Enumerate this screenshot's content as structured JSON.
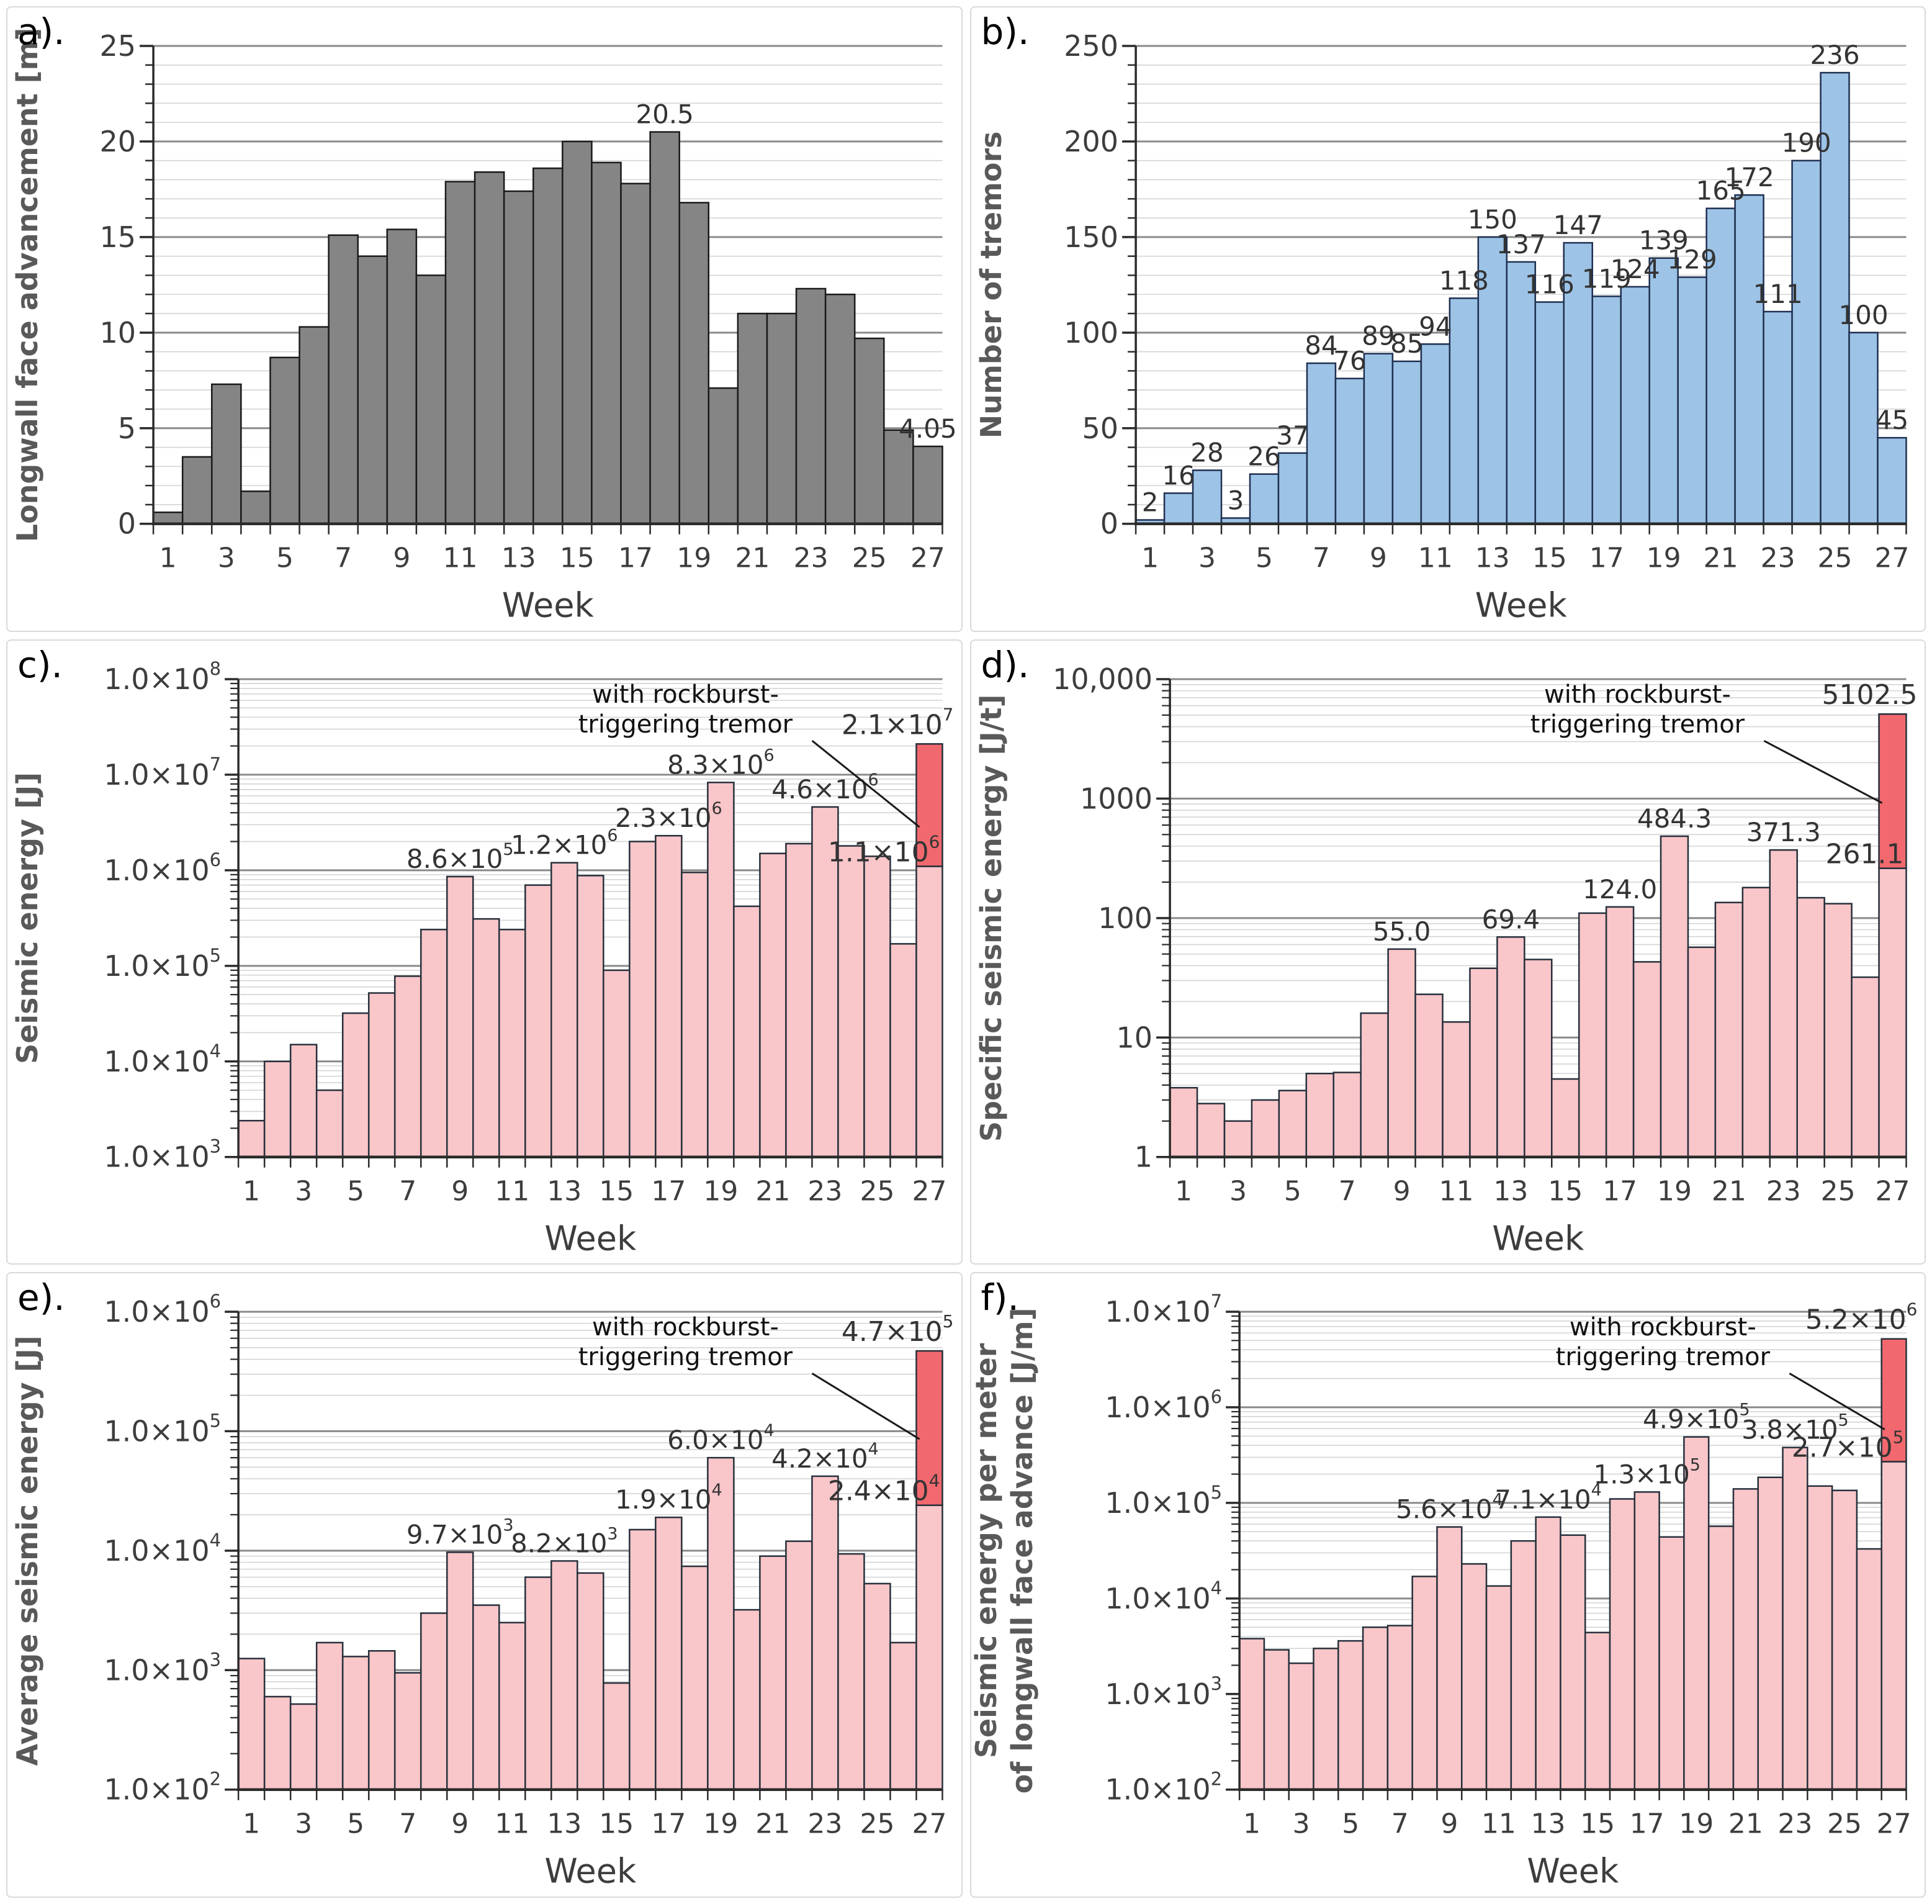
{
  "chart_data": [
    {
      "id": "a",
      "panel_label": "a).",
      "type": "bar",
      "scale": "linear",
      "ylabel_lines": [
        "Longwall face advancement [m]"
      ],
      "xlabel": "Week",
      "ylim": [
        0,
        25
      ],
      "ytick_minor": 1,
      "yticks": [
        {
          "v": 0,
          "label": "0"
        },
        {
          "v": 5,
          "label": "5"
        },
        {
          "v": 10,
          "label": "10"
        },
        {
          "v": 15,
          "label": "15"
        },
        {
          "v": 20,
          "label": "20"
        },
        {
          "v": 25,
          "label": "25"
        }
      ],
      "weeks": [
        1,
        2,
        3,
        4,
        5,
        6,
        7,
        8,
        9,
        10,
        11,
        12,
        13,
        14,
        15,
        16,
        17,
        18,
        19,
        20,
        21,
        22,
        23,
        24,
        25,
        26,
        27
      ],
      "xtick_labels": [
        "1",
        "3",
        "5",
        "7",
        "9",
        "11",
        "13",
        "15",
        "17",
        "19",
        "21",
        "23",
        "25",
        "27"
      ],
      "values": [
        0.6,
        3.5,
        7.3,
        1.7,
        8.7,
        10.3,
        15.1,
        14.0,
        15.4,
        13.0,
        17.9,
        18.4,
        17.4,
        18.6,
        20.0,
        18.9,
        17.8,
        20.5,
        16.8,
        7.1,
        11.0,
        11.0,
        12.3,
        12.0,
        9.7,
        4.9,
        4.05
      ],
      "bar_fill": "#858585",
      "bar_stroke": "#1a1a1a",
      "data_labels": [
        {
          "week": 18,
          "text": "20.5"
        },
        {
          "week": 27,
          "text": "4.05"
        }
      ]
    },
    {
      "id": "b",
      "panel_label": "b).",
      "type": "bar",
      "scale": "linear",
      "ylabel_lines": [
        "Number of tremors"
      ],
      "xlabel": "Week",
      "ylim": [
        0,
        250
      ],
      "ytick_minor": 10,
      "yticks": [
        {
          "v": 0,
          "label": "0"
        },
        {
          "v": 50,
          "label": "50"
        },
        {
          "v": 100,
          "label": "100"
        },
        {
          "v": 150,
          "label": "150"
        },
        {
          "v": 200,
          "label": "200"
        },
        {
          "v": 250,
          "label": "250"
        }
      ],
      "weeks": [
        1,
        2,
        3,
        4,
        5,
        6,
        7,
        8,
        9,
        10,
        11,
        12,
        13,
        14,
        15,
        16,
        17,
        18,
        19,
        20,
        21,
        22,
        23,
        24,
        25,
        26,
        27
      ],
      "xtick_labels": [
        "1",
        "3",
        "5",
        "7",
        "9",
        "11",
        "13",
        "15",
        "17",
        "19",
        "21",
        "23",
        "25",
        "27"
      ],
      "values": [
        2,
        16,
        28,
        3,
        26,
        37,
        84,
        76,
        89,
        85,
        94,
        118,
        150,
        137,
        116,
        147,
        119,
        124,
        139,
        129,
        165,
        172,
        111,
        190,
        236,
        100,
        45
      ],
      "bar_fill": "#9dc3e6",
      "bar_stroke": "#1f3050",
      "data_labels": [
        {
          "week": 1,
          "text": "2"
        },
        {
          "week": 2,
          "text": "16"
        },
        {
          "week": 3,
          "text": "28"
        },
        {
          "week": 4,
          "text": "3"
        },
        {
          "week": 5,
          "text": "26"
        },
        {
          "week": 6,
          "text": "37"
        },
        {
          "week": 7,
          "text": "84"
        },
        {
          "week": 8,
          "text": "76"
        },
        {
          "week": 9,
          "text": "89"
        },
        {
          "week": 10,
          "text": "85"
        },
        {
          "week": 11,
          "text": "94"
        },
        {
          "week": 12,
          "text": "118"
        },
        {
          "week": 13,
          "text": "150"
        },
        {
          "week": 14,
          "text": "137"
        },
        {
          "week": 15,
          "text": "116"
        },
        {
          "week": 16,
          "text": "147"
        },
        {
          "week": 17,
          "text": "119"
        },
        {
          "week": 18,
          "text": "124"
        },
        {
          "week": 19,
          "text": "139"
        },
        {
          "week": 20,
          "text": "129"
        },
        {
          "week": 21,
          "text": "165"
        },
        {
          "week": 22,
          "text": "172"
        },
        {
          "week": 23,
          "text": "111"
        },
        {
          "week": 24,
          "text": "190"
        },
        {
          "week": 25,
          "text": "236"
        },
        {
          "week": 26,
          "text": "100"
        },
        {
          "week": 27,
          "text": "45"
        }
      ]
    },
    {
      "id": "c",
      "panel_label": "c).",
      "type": "bar",
      "scale": "log",
      "ylabel_lines": [
        "Seismic energy [J]"
      ],
      "xlabel": "Week",
      "ylim": [
        1000,
        100000000
      ],
      "yticks": [
        {
          "v": 1000,
          "label": "1.0×10³"
        },
        {
          "v": 10000,
          "label": "1.0×10⁴"
        },
        {
          "v": 100000,
          "label": "1.0×10⁵"
        },
        {
          "v": 1000000,
          "label": "1.0×10⁶"
        },
        {
          "v": 10000000,
          "label": "1.0×10⁷"
        },
        {
          "v": 100000000,
          "label": "1.0×10⁸"
        }
      ],
      "weeks": [
        1,
        2,
        3,
        4,
        5,
        6,
        7,
        8,
        9,
        10,
        11,
        12,
        13,
        14,
        15,
        16,
        17,
        18,
        19,
        20,
        21,
        22,
        23,
        24,
        25,
        26,
        27
      ],
      "xtick_labels": [
        "1",
        "3",
        "5",
        "7",
        "9",
        "11",
        "13",
        "15",
        "17",
        "19",
        "21",
        "23",
        "25",
        "27"
      ],
      "values": [
        2400,
        10000,
        15000,
        5000,
        32000,
        52000,
        78000,
        240000,
        860000,
        310000,
        240000,
        700000,
        1200000,
        880000,
        90000,
        2000000,
        2300000,
        950000,
        8300000,
        420000,
        1500000,
        1900000,
        4600000,
        1800000,
        1400000,
        170000,
        1100000
      ],
      "bar_fill": "#f9c6c9",
      "bar_stroke": "#26303b",
      "data_labels": [
        {
          "week": 9,
          "text": "8.6×10⁵"
        },
        {
          "week": 13,
          "text": "1.2×10⁶"
        },
        {
          "week": 17,
          "text": "2.3×10⁶"
        },
        {
          "week": 19,
          "text": "8.3×10⁶"
        },
        {
          "week": 23,
          "text": "4.6×10⁶"
        }
      ],
      "rockburst": {
        "week": 27,
        "base_value": 1100000,
        "total_value": 21000000,
        "base_label": "1.1×10⁶",
        "total_label": "2.1×10⁷",
        "fill": "#f1696e"
      },
      "annotation": {
        "lines": [
          "with rockburst-",
          "triggering tremor"
        ]
      }
    },
    {
      "id": "d",
      "panel_label": "d).",
      "type": "bar",
      "scale": "log",
      "ylabel_lines": [
        "Specific seismic energy [J/t]"
      ],
      "xlabel": "Week",
      "ylim": [
        1,
        10000
      ],
      "yticks": [
        {
          "v": 1,
          "label": "1"
        },
        {
          "v": 10,
          "label": "10"
        },
        {
          "v": 100,
          "label": "100"
        },
        {
          "v": 1000,
          "label": "1000"
        },
        {
          "v": 10000,
          "label": "10,000"
        }
      ],
      "weeks": [
        1,
        2,
        3,
        4,
        5,
        6,
        7,
        8,
        9,
        10,
        11,
        12,
        13,
        14,
        15,
        16,
        17,
        18,
        19,
        20,
        21,
        22,
        23,
        24,
        25,
        26,
        27
      ],
      "xtick_labels": [
        "1",
        "3",
        "5",
        "7",
        "9",
        "11",
        "13",
        "15",
        "17",
        "19",
        "21",
        "23",
        "25",
        "27"
      ],
      "values": [
        3.8,
        2.8,
        2.0,
        3.0,
        3.6,
        5.0,
        5.1,
        16,
        55,
        23,
        13.5,
        38,
        69.4,
        45,
        4.5,
        110,
        124,
        43,
        484.3,
        57,
        135,
        180,
        371.3,
        148,
        132,
        32,
        261.1
      ],
      "bar_fill": "#f9c6c9",
      "bar_stroke": "#26303b",
      "data_labels": [
        {
          "week": 9,
          "text": "55.0"
        },
        {
          "week": 13,
          "text": "69.4"
        },
        {
          "week": 17,
          "text": "124.0"
        },
        {
          "week": 19,
          "text": "484.3"
        },
        {
          "week": 23,
          "text": "371.3"
        }
      ],
      "rockburst": {
        "week": 27,
        "base_value": 261.1,
        "total_value": 5102.5,
        "base_label": "261.1",
        "total_label": "5102.5",
        "fill": "#f1696e"
      },
      "annotation": {
        "lines": [
          "with rockburst-",
          "triggering tremor"
        ]
      }
    },
    {
      "id": "e",
      "panel_label": "e).",
      "type": "bar",
      "scale": "log",
      "ylabel_lines": [
        "Average seismic energy [J]"
      ],
      "xlabel": "Week",
      "ylim": [
        100,
        1000000
      ],
      "yticks": [
        {
          "v": 100,
          "label": "1.0×10²"
        },
        {
          "v": 1000,
          "label": "1.0×10³"
        },
        {
          "v": 10000,
          "label": "1.0×10⁴"
        },
        {
          "v": 100000,
          "label": "1.0×10⁵"
        },
        {
          "v": 1000000,
          "label": "1.0×10⁶"
        }
      ],
      "weeks": [
        1,
        2,
        3,
        4,
        5,
        6,
        7,
        8,
        9,
        10,
        11,
        12,
        13,
        14,
        15,
        16,
        17,
        18,
        19,
        20,
        21,
        22,
        23,
        24,
        25,
        26,
        27
      ],
      "xtick_labels": [
        "1",
        "3",
        "5",
        "7",
        "9",
        "11",
        "13",
        "15",
        "17",
        "19",
        "21",
        "23",
        "25",
        "27"
      ],
      "values": [
        1250,
        600,
        520,
        1700,
        1300,
        1450,
        950,
        3000,
        9700,
        3500,
        2500,
        6000,
        8200,
        6500,
        780,
        15000,
        19000,
        7400,
        60000,
        3200,
        9000,
        12000,
        42000,
        9400,
        5300,
        1700,
        24000
      ],
      "bar_fill": "#f9c6c9",
      "bar_stroke": "#26303b",
      "data_labels": [
        {
          "week": 9,
          "text": "9.7×10³"
        },
        {
          "week": 13,
          "text": "8.2×10³"
        },
        {
          "week": 17,
          "text": "1.9×10⁴"
        },
        {
          "week": 19,
          "text": "6.0×10⁴"
        },
        {
          "week": 23,
          "text": "4.2×10⁴"
        }
      ],
      "rockburst": {
        "week": 27,
        "base_value": 24000,
        "total_value": 470000,
        "base_label": "2.4×10⁴",
        "total_label": "4.7×10⁵",
        "fill": "#f1696e"
      },
      "annotation": {
        "lines": [
          "with rockburst-",
          "triggering tremor"
        ]
      }
    },
    {
      "id": "f",
      "panel_label": "f).",
      "type": "bar",
      "scale": "log",
      "ylabel_lines": [
        "Seismic energy per meter",
        "of longwall face advance [J/m]"
      ],
      "xlabel": "Week",
      "ylim": [
        100,
        10000000
      ],
      "yticks": [
        {
          "v": 100,
          "label": "1.0×10²"
        },
        {
          "v": 1000,
          "label": "1.0×10³"
        },
        {
          "v": 10000,
          "label": "1.0×10⁴"
        },
        {
          "v": 100000,
          "label": "1.0×10⁵"
        },
        {
          "v": 1000000,
          "label": "1.0×10⁶"
        },
        {
          "v": 10000000,
          "label": "1.0×10⁷"
        }
      ],
      "weeks": [
        1,
        2,
        3,
        4,
        5,
        6,
        7,
        8,
        9,
        10,
        11,
        12,
        13,
        14,
        15,
        16,
        17,
        18,
        19,
        20,
        21,
        22,
        23,
        24,
        25,
        26,
        27
      ],
      "xtick_labels": [
        "1",
        "3",
        "5",
        "7",
        "9",
        "11",
        "13",
        "15",
        "17",
        "19",
        "21",
        "23",
        "25",
        "27"
      ],
      "values": [
        3800,
        2900,
        2100,
        3000,
        3600,
        5000,
        5200,
        17000,
        56000,
        23000,
        13500,
        40000,
        71000,
        46000,
        4400,
        110000,
        130000,
        44000,
        490000,
        57000,
        140000,
        185000,
        380000,
        150000,
        135000,
        33000,
        270000
      ],
      "bar_fill": "#f9c6c9",
      "bar_stroke": "#26303b",
      "data_labels": [
        {
          "week": 9,
          "text": "5.6×10⁴"
        },
        {
          "week": 13,
          "text": "7.1×10⁴"
        },
        {
          "week": 17,
          "text": "1.3×10⁵"
        },
        {
          "week": 19,
          "text": "4.9×10⁵"
        },
        {
          "week": 23,
          "text": "3.8×10⁵"
        }
      ],
      "rockburst": {
        "week": 27,
        "base_value": 270000,
        "total_value": 5200000,
        "base_label": "2.7×10⁵",
        "total_label": "5.2×10⁶",
        "fill": "#f1696e"
      },
      "annotation": {
        "lines": [
          "with rockburst-",
          "triggering tremor"
        ]
      }
    }
  ]
}
